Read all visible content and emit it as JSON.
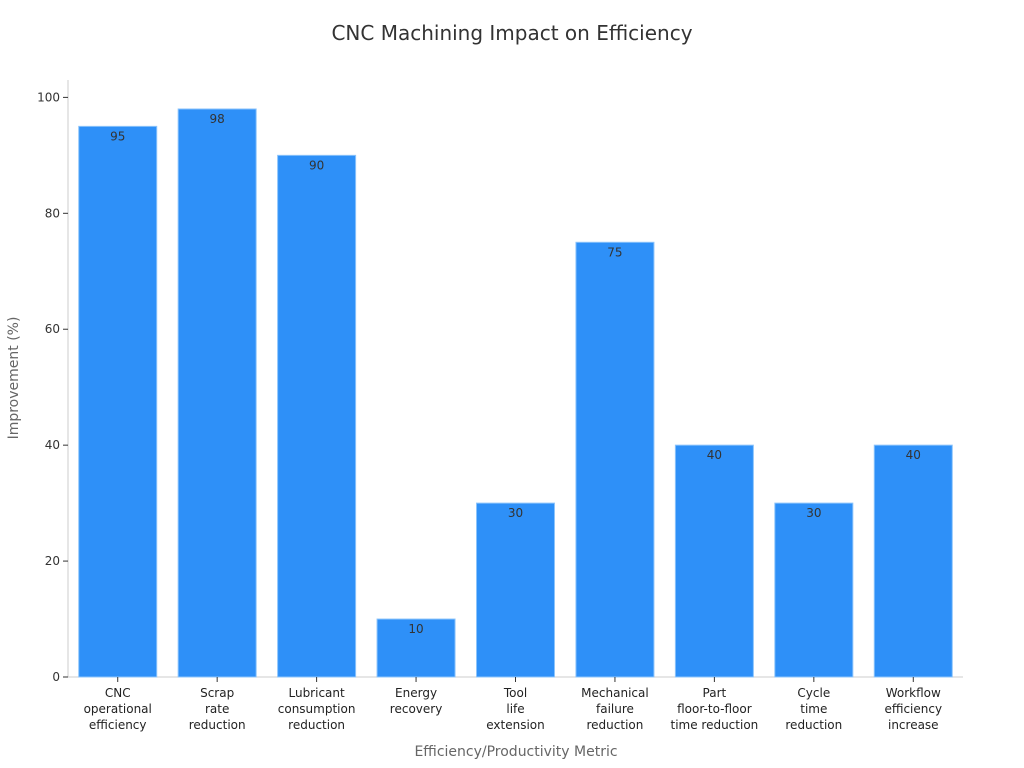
{
  "chart_data": {
    "type": "bar",
    "title": "CNC Machining Impact on Efficiency",
    "xlabel": "Efficiency/Productivity Metric",
    "ylabel": "Improvement (%)",
    "ylim": [
      0,
      103
    ],
    "yticks": [
      0,
      20,
      40,
      60,
      80,
      100
    ],
    "grid": false,
    "categories": [
      [
        "CNC",
        "operational",
        "efficiency"
      ],
      [
        "Scrap",
        "rate",
        "reduction"
      ],
      [
        "Lubricant",
        "consumption",
        "reduction"
      ],
      [
        "Energy",
        "recovery"
      ],
      [
        "Tool",
        "life",
        "extension"
      ],
      [
        "Mechanical",
        "failure",
        "reduction"
      ],
      [
        "Part",
        "floor-to-floor",
        "time reduction"
      ],
      [
        "Cycle",
        "time",
        "reduction"
      ],
      [
        "Workflow",
        "efficiency",
        "increase"
      ]
    ],
    "values": [
      95,
      98,
      90,
      10,
      30,
      75,
      40,
      30,
      40
    ],
    "colors": {
      "bar": "#2e90f8",
      "bar_edge": "#8cc4fb",
      "axis": "#cccccc",
      "text": "#333333",
      "label": "#666666"
    }
  }
}
